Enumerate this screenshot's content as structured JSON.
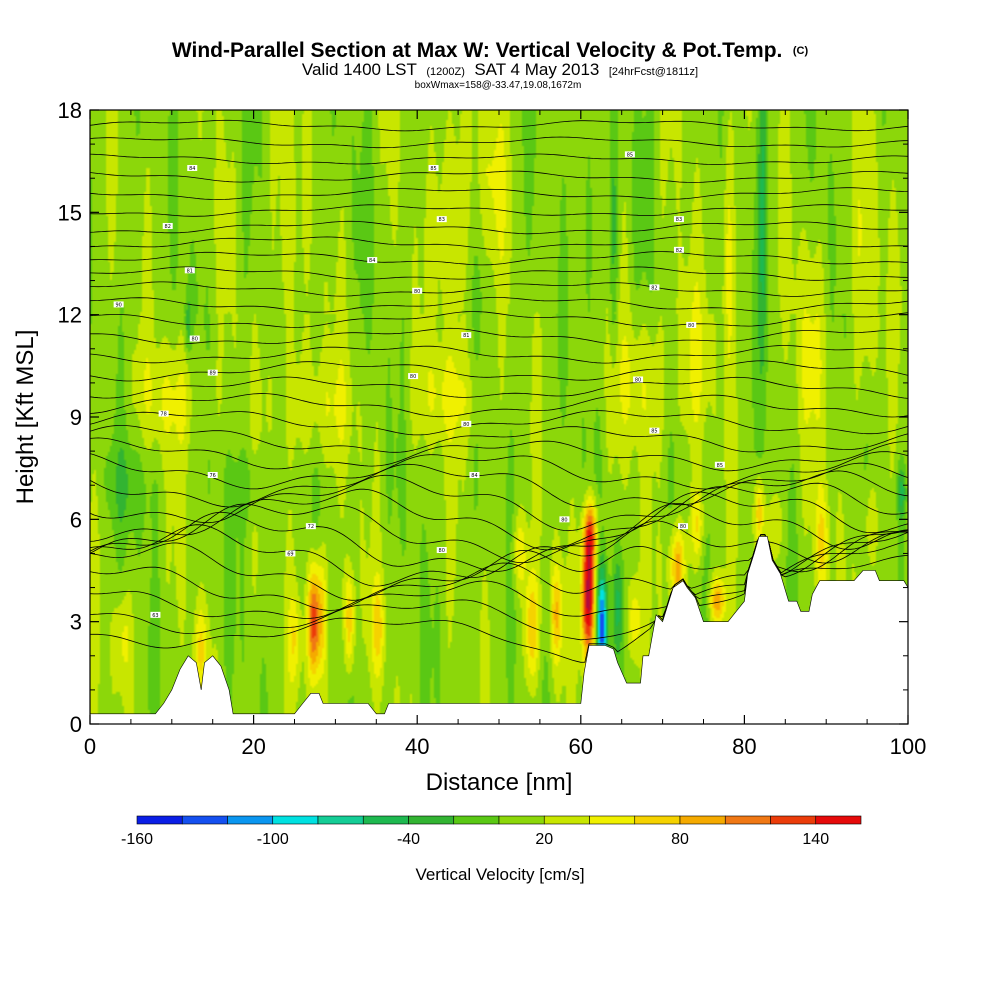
{
  "chart_data": {
    "type": "heatmap",
    "title": "Wind-Parallel Section at Max W: Vertical Velocity & Pot.Temp.",
    "title_mark": "(C)",
    "subtitle": {
      "part1": "Valid 1400 LST",
      "part2": "(1200Z)",
      "part3": "SAT 4 May 2013",
      "part4": "[24hrFcst@1811z]"
    },
    "subtitle2": "boxWmax=158@-33.47,19.08,1672m",
    "xlabel": "Distance [nm]",
    "ylabel": "Height [Kft MSL]",
    "xlim": [
      0,
      100
    ],
    "ylim": [
      0,
      18
    ],
    "xticks": [
      0,
      20,
      40,
      60,
      80,
      100
    ],
    "yticks": [
      0,
      3,
      6,
      9,
      12,
      15,
      18
    ],
    "colorbar": {
      "label": "Vertical Velocity [cm/s]",
      "tick_labels": [
        -160,
        -100,
        -40,
        20,
        80,
        140
      ],
      "levels": [
        -160,
        -140,
        -120,
        -100,
        -80,
        -60,
        -40,
        -20,
        0,
        20,
        40,
        60,
        80,
        100,
        120,
        140,
        160
      ],
      "colors": [
        "#0a1ee6",
        "#1450f0",
        "#0a96f0",
        "#00e1e1",
        "#14cd96",
        "#1eb950",
        "#32b432",
        "#5ac814",
        "#8cd70a",
        "#c8e600",
        "#f0f000",
        "#f5d200",
        "#f5aa00",
        "#f07814",
        "#eb3c0a",
        "#e60a0a",
        "#b40a3c"
      ]
    },
    "background_w": 10,
    "features": [
      {
        "x": 27.3,
        "z": 3.0,
        "sx": 0.5,
        "sz": 1.2,
        "w": 125
      },
      {
        "x": 28.3,
        "z": 3.2,
        "sx": 0.5,
        "sz": 1.3,
        "w": 60
      },
      {
        "x": 31.7,
        "z": 3.0,
        "sx": 0.45,
        "sz": 1.1,
        "w": 75
      },
      {
        "x": 25.0,
        "z": 2.5,
        "sx": 0.5,
        "sz": 0.9,
        "w": 40
      },
      {
        "x": 35.2,
        "z": 2.8,
        "sx": 0.6,
        "sz": 1.0,
        "w": 50
      },
      {
        "x": 13.5,
        "z": 2.2,
        "sx": 0.6,
        "sz": 0.9,
        "w": 45
      },
      {
        "x": 4.0,
        "z": 2.5,
        "sx": 0.8,
        "sz": 1.0,
        "w": 35
      },
      {
        "x": 54.0,
        "z": 2.8,
        "sx": 0.6,
        "sz": 1.2,
        "w": 70
      },
      {
        "x": 57.0,
        "z": 3.2,
        "sx": 0.5,
        "sz": 1.0,
        "w": 65
      },
      {
        "x": 52.5,
        "z": 5.0,
        "sx": 0.6,
        "sz": 0.8,
        "w": 50
      },
      {
        "x": 60.9,
        "z": 3.7,
        "sx": 0.6,
        "sz": 1.3,
        "w": 165
      },
      {
        "x": 61.2,
        "z": 5.6,
        "sx": 0.6,
        "sz": 0.7,
        "w": 95
      },
      {
        "x": 62.6,
        "z": 2.8,
        "sx": 0.45,
        "sz": 1.2,
        "w": -140
      },
      {
        "x": 64.5,
        "z": 3.5,
        "sx": 0.5,
        "sz": 1.0,
        "w": -45
      },
      {
        "x": 66.5,
        "z": 3.0,
        "sx": 0.6,
        "sz": 0.9,
        "w": 50
      },
      {
        "x": 71.8,
        "z": 4.6,
        "sx": 0.7,
        "sz": 0.8,
        "w": 80
      },
      {
        "x": 74.2,
        "z": 5.8,
        "sx": 0.6,
        "sz": 0.8,
        "w": 50
      },
      {
        "x": 76.7,
        "z": 3.6,
        "sx": 0.7,
        "sz": 0.5,
        "w": 85
      },
      {
        "x": 81.8,
        "z": 6.2,
        "sx": 0.4,
        "sz": 0.7,
        "w": 70
      },
      {
        "x": 84.0,
        "z": 5.8,
        "sx": 0.5,
        "sz": 0.8,
        "w": 40
      },
      {
        "x": 89.5,
        "z": 5.2,
        "sx": 0.6,
        "sz": 1.1,
        "w": 55
      },
      {
        "x": 95.5,
        "z": 5.8,
        "sx": 0.6,
        "sz": 0.9,
        "w": 40
      },
      {
        "x": 99.2,
        "z": 6.8,
        "sx": 0.4,
        "sz": 0.6,
        "w": -55
      },
      {
        "x": 82.3,
        "z": 15.5,
        "sx": 0.4,
        "sz": 3.5,
        "w": -50
      },
      {
        "x": 64.0,
        "z": 14.0,
        "sx": 0.4,
        "sz": 2.5,
        "w": -45
      },
      {
        "x": 61.0,
        "z": 15.0,
        "sx": 0.3,
        "sz": 2.0,
        "w": -35
      },
      {
        "x": 78.0,
        "z": 14.0,
        "sx": 0.5,
        "sz": 3.0,
        "w": 40
      },
      {
        "x": 24.0,
        "z": 14.0,
        "sx": 1.0,
        "sz": 3.0,
        "w": 30
      },
      {
        "x": 44.0,
        "z": 15.0,
        "sx": 1.5,
        "sz": 2.5,
        "w": 32
      },
      {
        "x": 49.0,
        "z": 16.0,
        "sx": 1.2,
        "sz": 1.8,
        "w": 30
      },
      {
        "x": 10.0,
        "z": 9.5,
        "sx": 3.0,
        "sz": 1.2,
        "w": 30
      },
      {
        "x": 28.0,
        "z": 9.3,
        "sx": 3.0,
        "sz": 1.2,
        "w": 28
      },
      {
        "x": 44.0,
        "z": 9.6,
        "sx": 3.0,
        "sz": 1.0,
        "w": 30
      },
      {
        "x": 67.0,
        "z": 10.0,
        "sx": 2.5,
        "sz": 1.5,
        "w": 28
      },
      {
        "x": 73.5,
        "z": 10.5,
        "sx": 1.5,
        "sz": 2.0,
        "w": 30
      },
      {
        "x": 88.0,
        "z": 11.0,
        "sx": 1.5,
        "sz": 2.5,
        "w": 25
      },
      {
        "x": 95.0,
        "z": 13.0,
        "sx": 1.2,
        "sz": 3.0,
        "w": 28
      },
      {
        "x": 12.0,
        "z": 11.7,
        "sx": 0.3,
        "sz": 0.6,
        "w": -40
      },
      {
        "x": 5.0,
        "z": 7.0,
        "sx": 2.0,
        "sz": 1.0,
        "w": -25
      },
      {
        "x": 20.0,
        "z": 7.0,
        "sx": 2.0,
        "sz": 0.8,
        "w": -20
      }
    ],
    "terrain": [
      [
        0,
        0.3
      ],
      [
        8,
        0.3
      ],
      [
        9,
        0.6
      ],
      [
        10,
        1.0
      ],
      [
        11,
        1.6
      ],
      [
        12,
        2.0
      ],
      [
        13,
        1.8
      ],
      [
        13.6,
        1.0
      ],
      [
        14,
        1.8
      ],
      [
        15,
        2.0
      ],
      [
        16,
        1.7
      ],
      [
        17,
        1.0
      ],
      [
        17.5,
        0.3
      ],
      [
        25,
        0.3
      ],
      [
        26,
        0.6
      ],
      [
        27,
        0.9
      ],
      [
        28,
        0.9
      ],
      [
        28.5,
        0.6
      ],
      [
        34,
        0.6
      ],
      [
        35,
        0.3
      ],
      [
        36,
        0.3
      ],
      [
        36.5,
        0.6
      ],
      [
        60,
        0.6
      ],
      [
        60.4,
        1.5
      ],
      [
        61,
        2.3
      ],
      [
        63,
        2.3
      ],
      [
        64,
        2.2
      ],
      [
        64.5,
        1.8
      ],
      [
        65.6,
        1.2
      ],
      [
        67.3,
        1.2
      ],
      [
        67.6,
        2.0
      ],
      [
        68.3,
        2.0
      ],
      [
        69.2,
        3.2
      ],
      [
        70,
        3.0
      ],
      [
        71.3,
        4.0
      ],
      [
        72.5,
        4.2
      ],
      [
        73,
        4.0
      ],
      [
        74,
        3.7
      ],
      [
        75,
        3.0
      ],
      [
        76,
        3.0
      ],
      [
        78,
        3.0
      ],
      [
        79,
        3.3
      ],
      [
        80,
        3.6
      ],
      [
        80.4,
        4.4
      ],
      [
        81.2,
        5.0
      ],
      [
        81.8,
        5.5
      ],
      [
        82.8,
        5.5
      ],
      [
        83.4,
        4.8
      ],
      [
        84.4,
        4.4
      ],
      [
        85.4,
        3.6
      ],
      [
        86.4,
        3.6
      ],
      [
        86.9,
        3.3
      ],
      [
        87.9,
        3.3
      ],
      [
        88.3,
        3.8
      ],
      [
        89.2,
        4.2
      ],
      [
        93.4,
        4.2
      ],
      [
        94.5,
        4.5
      ],
      [
        96,
        4.5
      ],
      [
        96.5,
        4.2
      ],
      [
        99.5,
        4.2
      ],
      [
        100,
        4.0
      ]
    ],
    "theta_lines": [
      {
        "z": 17.55,
        "amp": 0.12
      },
      {
        "z": 17.05,
        "amp": 0.12
      },
      {
        "z": 16.55,
        "amp": 0.12
      },
      {
        "z": 16.05,
        "amp": 0.13
      },
      {
        "z": 15.55,
        "amp": 0.13
      },
      {
        "z": 15.05,
        "amp": 0.13
      },
      {
        "z": 14.55,
        "amp": 0.14
      },
      {
        "z": 14.1,
        "amp": 0.15
      },
      {
        "z": 13.65,
        "amp": 0.15
      },
      {
        "z": 13.2,
        "amp": 0.15
      },
      {
        "z": 12.75,
        "amp": 0.16
      },
      {
        "z": 12.3,
        "amp": 0.17
      },
      {
        "z": 11.85,
        "amp": 0.18
      },
      {
        "z": 11.35,
        "amp": 0.19
      },
      {
        "z": 10.85,
        "amp": 0.2
      },
      {
        "z": 10.35,
        "amp": 0.22
      },
      {
        "z": 9.85,
        "amp": 0.24
      },
      {
        "z": 9.35,
        "amp": 0.26
      },
      {
        "z": 8.85,
        "amp": 0.28
      },
      {
        "z": 8.35,
        "amp": 0.32
      },
      {
        "z": 7.9,
        "amp": 0.36
      },
      {
        "z": 7.45,
        "amp": 0.42
      },
      {
        "z": 7.0,
        "amp": 0.48
      },
      {
        "z": 6.55,
        "amp": 0.55
      },
      {
        "z": 6.1,
        "amp": 0.62
      },
      {
        "z": 5.7,
        "amp": 0.68
      },
      {
        "z": 5.3,
        "amp": 0.7
      },
      {
        "z": 4.9,
        "amp": 0.7
      },
      {
        "z": 4.5,
        "amp": 0.65
      },
      {
        "z": 4.05,
        "amp": 0.55
      },
      {
        "z": 3.6,
        "amp": 0.45
      },
      {
        "z": 3.15,
        "amp": 0.4
      },
      {
        "z": 2.7,
        "amp": 0.35
      }
    ],
    "theta_labels": [
      {
        "x": 3.5,
        "z": 12.3,
        "text": "90"
      },
      {
        "x": 12.5,
        "z": 16.3,
        "text": "84"
      },
      {
        "x": 9.5,
        "z": 14.6,
        "text": "82"
      },
      {
        "x": 12.2,
        "z": 13.3,
        "text": "81"
      },
      {
        "x": 12.8,
        "z": 11.3,
        "text": "80"
      },
      {
        "x": 15.0,
        "z": 10.3,
        "text": "89"
      },
      {
        "x": 9.0,
        "z": 9.1,
        "text": "78"
      },
      {
        "x": 15.0,
        "z": 7.3,
        "text": "76"
      },
      {
        "x": 27.0,
        "z": 5.8,
        "text": "72"
      },
      {
        "x": 24.5,
        "z": 5.0,
        "text": "69"
      },
      {
        "x": 8.0,
        "z": 3.2,
        "text": "63"
      },
      {
        "x": 42.0,
        "z": 16.3,
        "text": "85"
      },
      {
        "x": 43.0,
        "z": 14.8,
        "text": "83"
      },
      {
        "x": 34.5,
        "z": 13.6,
        "text": "84"
      },
      {
        "x": 40.0,
        "z": 12.7,
        "text": "80"
      },
      {
        "x": 46.0,
        "z": 11.4,
        "text": "81"
      },
      {
        "x": 39.5,
        "z": 10.2,
        "text": "80"
      },
      {
        "x": 46.0,
        "z": 8.8,
        "text": "80"
      },
      {
        "x": 47.0,
        "z": 7.3,
        "text": "84"
      },
      {
        "x": 43.0,
        "z": 5.1,
        "text": "80"
      },
      {
        "x": 66.0,
        "z": 16.7,
        "text": "85"
      },
      {
        "x": 72.0,
        "z": 14.8,
        "text": "83"
      },
      {
        "x": 72.0,
        "z": 13.9,
        "text": "82"
      },
      {
        "x": 69.0,
        "z": 12.8,
        "text": "82"
      },
      {
        "x": 73.5,
        "z": 11.7,
        "text": "80"
      },
      {
        "x": 67.0,
        "z": 10.1,
        "text": "80"
      },
      {
        "x": 69.0,
        "z": 8.6,
        "text": "85"
      },
      {
        "x": 77.0,
        "z": 7.6,
        "text": "85"
      },
      {
        "x": 58.0,
        "z": 6.0,
        "text": "80"
      },
      {
        "x": 72.5,
        "z": 5.8,
        "text": "80"
      }
    ]
  }
}
